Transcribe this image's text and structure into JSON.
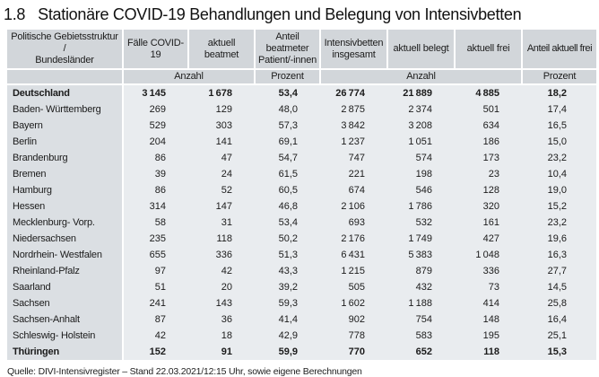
{
  "title": {
    "number": "1.8",
    "text": "Stationäre COVID-19 Behandlungen und Belegung von Intensivbetten"
  },
  "table": {
    "columns": [
      {
        "label": "Politische Gebietsstruktur /\nBundesländer"
      },
      {
        "label": "Fälle COVID-19"
      },
      {
        "label": "aktuell beatmet"
      },
      {
        "label": "Anteil\nbeatmeter\nPatient/-innen"
      },
      {
        "label": "Intensivbetten\ninsgesamt"
      },
      {
        "label": "aktuell belegt"
      },
      {
        "label": "aktuell frei"
      },
      {
        "label": "Anteil aktuell frei"
      }
    ],
    "units": {
      "anzahl_left": "Anzahl",
      "prozent_left": "Prozent",
      "anzahl_right": "Anzahl",
      "prozent_right": "Prozent"
    },
    "rows": [
      {
        "name": "Deutschland",
        "bold": true,
        "values": [
          "3 145",
          "1 678",
          "53,4",
          "26 774",
          "21 889",
          "4 885",
          "18,2"
        ]
      },
      {
        "name": "Baden- Württemberg",
        "bold": false,
        "values": [
          "269",
          "129",
          "48,0",
          "2 875",
          "2 374",
          "501",
          "17,4"
        ]
      },
      {
        "name": "Bayern",
        "bold": false,
        "values": [
          "529",
          "303",
          "57,3",
          "3 842",
          "3 208",
          "634",
          "16,5"
        ]
      },
      {
        "name": "Berlin",
        "bold": false,
        "values": [
          "204",
          "141",
          "69,1",
          "1 237",
          "1 051",
          "186",
          "15,0"
        ]
      },
      {
        "name": "Brandenburg",
        "bold": false,
        "values": [
          "86",
          "47",
          "54,7",
          "747",
          "574",
          "173",
          "23,2"
        ]
      },
      {
        "name": "Bremen",
        "bold": false,
        "values": [
          "39",
          "24",
          "61,5",
          "221",
          "198",
          "23",
          "10,4"
        ]
      },
      {
        "name": "Hamburg",
        "bold": false,
        "values": [
          "86",
          "52",
          "60,5",
          "674",
          "546",
          "128",
          "19,0"
        ]
      },
      {
        "name": "Hessen",
        "bold": false,
        "values": [
          "314",
          "147",
          "46,8",
          "2 106",
          "1 786",
          "320",
          "15,2"
        ]
      },
      {
        "name": "Mecklenburg- Vorp.",
        "bold": false,
        "values": [
          "58",
          "31",
          "53,4",
          "693",
          "532",
          "161",
          "23,2"
        ]
      },
      {
        "name": "Niedersachsen",
        "bold": false,
        "values": [
          "235",
          "118",
          "50,2",
          "2 176",
          "1 749",
          "427",
          "19,6"
        ]
      },
      {
        "name": "Nordrhein- Westfalen",
        "bold": false,
        "values": [
          "655",
          "336",
          "51,3",
          "6 431",
          "5 383",
          "1 048",
          "16,3"
        ]
      },
      {
        "name": "Rheinland-Pfalz",
        "bold": false,
        "values": [
          "97",
          "42",
          "43,3",
          "1 215",
          "879",
          "336",
          "27,7"
        ]
      },
      {
        "name": "Saarland",
        "bold": false,
        "values": [
          "51",
          "20",
          "39,2",
          "505",
          "432",
          "73",
          "14,5"
        ]
      },
      {
        "name": "Sachsen",
        "bold": false,
        "values": [
          "241",
          "143",
          "59,3",
          "1 602",
          "1 188",
          "414",
          "25,8"
        ]
      },
      {
        "name": "Sachsen-Anhalt",
        "bold": false,
        "values": [
          "87",
          "36",
          "41,4",
          "902",
          "754",
          "148",
          "16,4"
        ]
      },
      {
        "name": "Schleswig- Holstein",
        "bold": false,
        "values": [
          "42",
          "18",
          "42,9",
          "778",
          "583",
          "195",
          "25,1"
        ]
      },
      {
        "name": "Thüringen",
        "bold": true,
        "values": [
          "152",
          "91",
          "59,9",
          "770",
          "652",
          "118",
          "15,3"
        ]
      }
    ]
  },
  "footer": {
    "source": "Quelle: DIVI-Intensivregister – Stand 22.03.2021/12:15 Uhr, sowie eigene Berechnungen"
  },
  "colors": {
    "header_bg": "#d2d6da",
    "name_column_bg": "#dbdfe3",
    "body_bg": "#e9ecef",
    "text": "#1b1b1b"
  }
}
